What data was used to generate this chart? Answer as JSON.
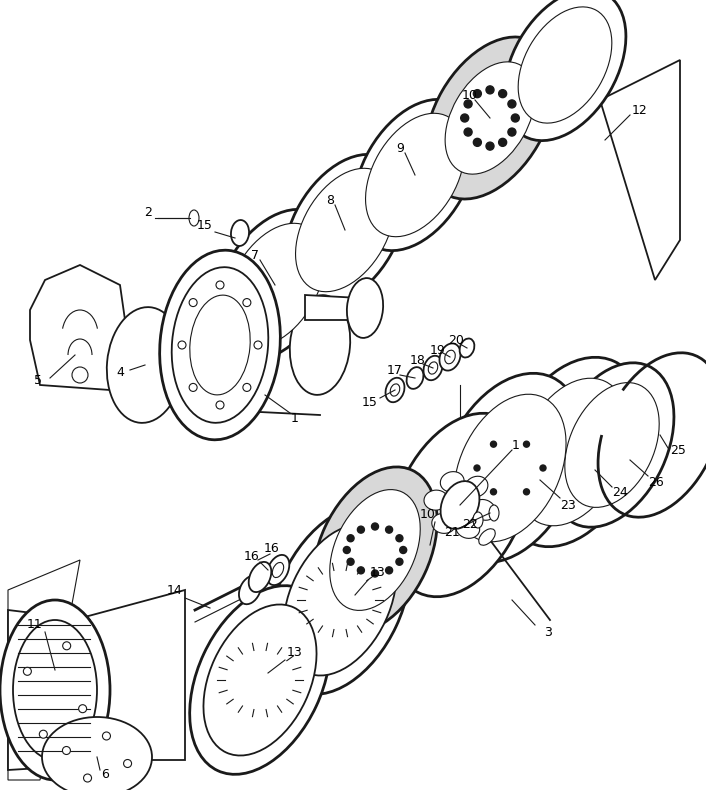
{
  "background_color": "#ffffff",
  "line_color": "#1a1a1a",
  "fig_width": 7.06,
  "fig_height": 7.9,
  "dpi": 100
}
